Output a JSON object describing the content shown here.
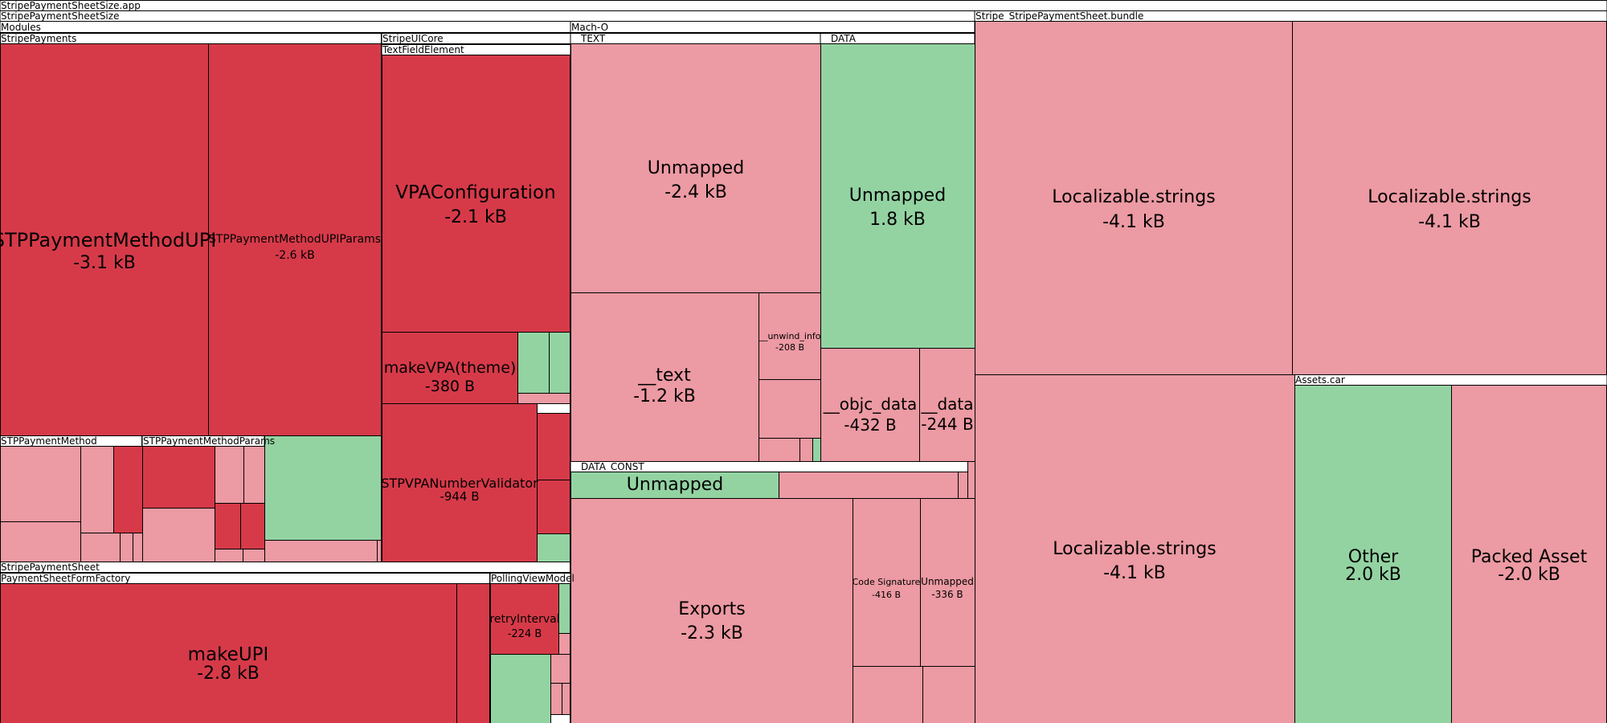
{
  "chart_data": {
    "type": "treemap",
    "title": "",
    "root": "StripePaymentSheetSize.app",
    "colors": {
      "decrease_strong": "#d63a49",
      "decrease_light": "#ec9aa3",
      "increase": "#93d3a2",
      "neutral": "#ffffff",
      "border": "#000000"
    },
    "groups": [
      {
        "id": "g-app-size",
        "name": "StripePaymentSheetSize"
      },
      {
        "id": "g-modules",
        "name": "Modules"
      },
      {
        "id": "g-stripepayments",
        "name": "StripePayments"
      },
      {
        "id": "g-stripeuicore",
        "name": "StripeUICore"
      },
      {
        "id": "g-textfieldelement",
        "name": "TextFieldElement"
      },
      {
        "id": "g-stppaymentmethod",
        "name": "STPPaymentMethod"
      },
      {
        "id": "g-stppaymentmethodparams",
        "name": "STPPaymentMethodParams"
      },
      {
        "id": "g-stripepaymentsheet",
        "name": "StripePaymentSheet"
      },
      {
        "id": "g-paymentsheetformfactory",
        "name": "PaymentSheetFormFactory"
      },
      {
        "id": "g-pollingviewmodel",
        "name": "PollingViewModel"
      },
      {
        "id": "g-macho",
        "name": "Mach-O"
      },
      {
        "id": "g-text",
        "name": "__TEXT"
      },
      {
        "id": "g-data",
        "name": "__DATA"
      },
      {
        "id": "g-data-const",
        "name": "__DATA_CONST"
      },
      {
        "id": "g-bundle",
        "name": "Stripe_StripePaymentSheet.bundle"
      },
      {
        "id": "g-assets",
        "name": "Assets.car"
      }
    ],
    "leaves": [
      {
        "id": "l-stppaymentmethodupi",
        "name": "STPPaymentMethodUPI",
        "value_label": "-3.1 kB",
        "value": -3.1,
        "unit": "kB",
        "trend": "strong-decrease"
      },
      {
        "id": "l-stppaymentmethodupiparams",
        "name": "STPPaymentMethodUPIParams",
        "value_label": "-2.6 kB",
        "value": -2.6,
        "unit": "kB",
        "trend": "strong-decrease"
      },
      {
        "id": "l-vpaconfiguration",
        "name": "VPAConfiguration",
        "value_label": "-2.1 kB",
        "value": -2.1,
        "unit": "kB",
        "trend": "strong-decrease"
      },
      {
        "id": "l-makevpa",
        "name": "makeVPA(theme)",
        "value_label": "-380 B",
        "value": -380,
        "unit": "B",
        "trend": "strong-decrease"
      },
      {
        "id": "l-stpvpanumbervalidator",
        "name": "STPVPANumberValidator",
        "value_label": "-944 B",
        "value": -944,
        "unit": "B",
        "trend": "strong-decrease"
      },
      {
        "id": "l-makeupi",
        "name": "makeUPI",
        "value_label": "-2.8 kB",
        "value": -2.8,
        "unit": "kB",
        "trend": "strong-decrease"
      },
      {
        "id": "l-retryinterval",
        "name": "retryInterval",
        "value_label": "-224 B",
        "value": -224,
        "unit": "B",
        "trend": "strong-decrease"
      },
      {
        "id": "l-text-unmapped",
        "name": "Unmapped",
        "value_label": "-2.4 kB",
        "value": -2.4,
        "unit": "kB",
        "trend": "decrease"
      },
      {
        "id": "l-text-text",
        "name": "__text",
        "value_label": "-1.2 kB",
        "value": -1.2,
        "unit": "kB",
        "trend": "decrease"
      },
      {
        "id": "l-unwind-info",
        "name": "__unwind_info",
        "value_label": "-208 B",
        "value": -208,
        "unit": "B",
        "trend": "decrease"
      },
      {
        "id": "l-data-unmapped",
        "name": "Unmapped",
        "value_label": "1.8 kB",
        "value": 1.8,
        "unit": "kB",
        "trend": "increase"
      },
      {
        "id": "l-objc-data",
        "name": "__objc_data",
        "value_label": "-432 B",
        "value": -432,
        "unit": "B",
        "trend": "decrease"
      },
      {
        "id": "l-data-data",
        "name": "__data",
        "value_label": "-244 B",
        "value": -244,
        "unit": "B",
        "trend": "decrease"
      },
      {
        "id": "l-data-const-unmapped",
        "name": "Unmapped",
        "value_label": "",
        "trend": "increase"
      },
      {
        "id": "l-exports",
        "name": "Exports",
        "value_label": "-2.3 kB",
        "value": -2.3,
        "unit": "kB",
        "trend": "decrease"
      },
      {
        "id": "l-code-signature",
        "name": "Code Signature",
        "value_label": "-416 B",
        "value": -416,
        "unit": "B",
        "trend": "decrease"
      },
      {
        "id": "l-macho-unmapped",
        "name": "Unmapped",
        "value_label": "-336 B",
        "value": -336,
        "unit": "B",
        "trend": "decrease"
      },
      {
        "id": "l-localizable-1",
        "name": "Localizable.strings",
        "value_label": "-4.1 kB",
        "value": -4.1,
        "unit": "kB",
        "trend": "decrease"
      },
      {
        "id": "l-localizable-2",
        "name": "Localizable.strings",
        "value_label": "-4.1 kB",
        "value": -4.1,
        "unit": "kB",
        "trend": "decrease"
      },
      {
        "id": "l-localizable-3",
        "name": "Localizable.strings",
        "value_label": "-4.1 kB",
        "value": -4.1,
        "unit": "kB",
        "trend": "decrease"
      },
      {
        "id": "l-assets-other",
        "name": "Other",
        "value_label": "2.0 kB",
        "value": 2.0,
        "unit": "kB",
        "trend": "increase"
      },
      {
        "id": "l-packed-asset",
        "name": "Packed Asset",
        "value_label": "-2.0 kB",
        "value": -2.0,
        "unit": "kB",
        "trend": "decrease"
      }
    ]
  }
}
